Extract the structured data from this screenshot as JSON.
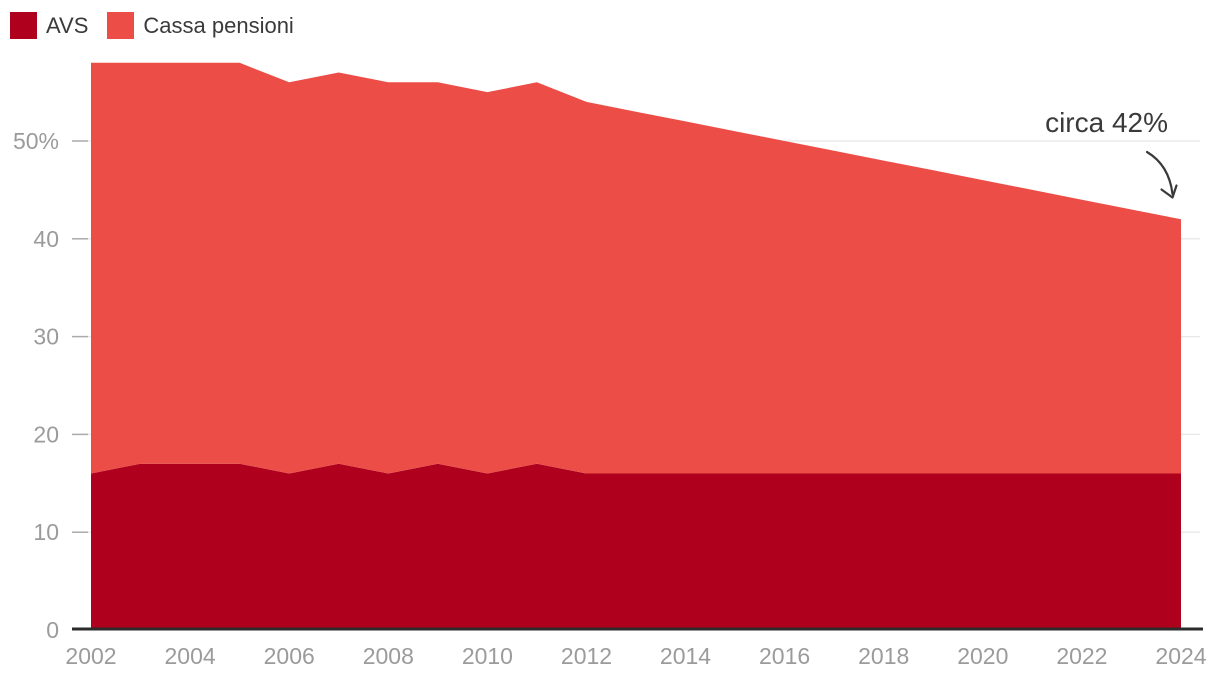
{
  "legend": {
    "items": [
      {
        "label": "AVS",
        "color": "#AF011E"
      },
      {
        "label": "Cassa pensioni",
        "color": "#ED4D47"
      }
    ]
  },
  "annotation": {
    "text": "circa 42%",
    "points_to_value": 42,
    "points_to_year": 2024
  },
  "colors": {
    "avs": "#AF011E",
    "cassa_pensioni": "#ED4D47",
    "gridline": "#E8E8E8",
    "tick": "#ABABAB",
    "axis_line": "#2B2B2B",
    "tick_label": "#9B9B9B",
    "annotation_text": "#3A3A3A"
  },
  "chart_data": {
    "type": "area",
    "stacked": true,
    "title": "",
    "xlabel": "",
    "ylabel": "",
    "x": [
      2002,
      2003,
      2004,
      2005,
      2006,
      2007,
      2008,
      2009,
      2010,
      2011,
      2012,
      2013,
      2014,
      2015,
      2016,
      2017,
      2018,
      2019,
      2020,
      2021,
      2022,
      2023,
      2024
    ],
    "series": [
      {
        "name": "AVS",
        "color": "#AF011E",
        "values": [
          16,
          17,
          17,
          17,
          16,
          17,
          16,
          17,
          16,
          17,
          16,
          16,
          16,
          16,
          16,
          16,
          16,
          16,
          16,
          16,
          16,
          16,
          16
        ]
      },
      {
        "name": "Cassa pensioni",
        "color": "#ED4D47",
        "values": [
          42,
          41,
          41,
          41,
          40,
          40,
          40,
          39,
          39,
          39,
          38,
          37,
          36,
          35,
          34,
          33,
          32,
          31,
          30,
          29,
          28,
          27,
          26
        ]
      }
    ],
    "totals": [
      58,
      58,
      58,
      58,
      56,
      57,
      56,
      56,
      55,
      56,
      54,
      53,
      52,
      51,
      50,
      49,
      48,
      47,
      46,
      45,
      44,
      43,
      42
    ],
    "x_ticks": [
      2002,
      2004,
      2006,
      2008,
      2010,
      2012,
      2014,
      2016,
      2018,
      2020,
      2022,
      2024
    ],
    "y_ticks": [
      0,
      10,
      20,
      30,
      40,
      50
    ],
    "y_tick_labels": [
      "0",
      "10",
      "20",
      "30",
      "40",
      "50%"
    ],
    "xlim": [
      2002,
      2024
    ],
    "ylim": [
      0,
      58
    ],
    "grid": "horizontal",
    "legend_position": "top-left"
  }
}
